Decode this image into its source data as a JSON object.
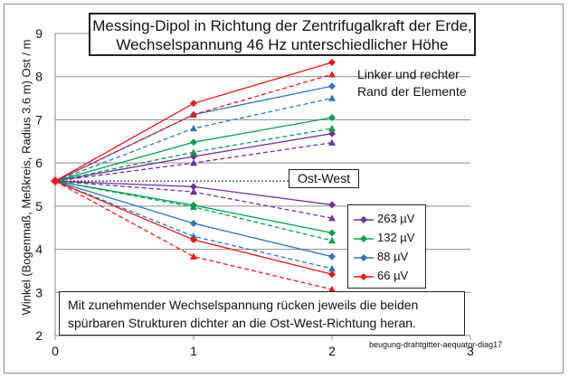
{
  "title_line1": "Messing-Dipol in Richtung der Zentrifugalkraft der Erde,",
  "title_line2": "Wechselspannung 46 Hz unterschiedlicher Höhe",
  "rand_line1": "Linker und rechter",
  "rand_line2": "Rand der Elemente",
  "ostwest_label": "Ost-West",
  "note_line1": "Mit zunehmender  Wechselspannung rücken jeweils die beiden",
  "note_line2": "spürbaren Strukturen  dichter an die Ost-West-Richtung heran.",
  "source_label": "beugung-drahtgitter-aequator-diag17",
  "chart_data": {
    "type": "line",
    "ylabel": "Winkel (Bogenmaß, Meßkreis, Radius 3.6 m)  Ost / m",
    "xlabel": "",
    "xlim": [
      0,
      3
    ],
    "ylim": [
      2,
      9
    ],
    "x_ticks": [
      "0",
      "1",
      "2",
      "3"
    ],
    "y_ticks": [
      "2",
      "3",
      "4",
      "5",
      "6",
      "7",
      "8",
      "9"
    ],
    "grid": "horizontal",
    "legend_position": "lower-right",
    "x": [
      0,
      1,
      2
    ],
    "ostwest_y": 5.58,
    "series": [
      {
        "name": "263 µV",
        "color": "#7030a0",
        "solid_upper": [
          5.58,
          6.15,
          6.68
        ],
        "dashed_upper": [
          5.58,
          6.0,
          6.47
        ],
        "solid_lower": [
          5.58,
          5.45,
          5.03
        ],
        "dashed_lower": [
          5.58,
          5.33,
          4.72
        ]
      },
      {
        "name": "132 µV",
        "color": "#00a050",
        "solid_upper": [
          5.58,
          6.48,
          7.05
        ],
        "dashed_upper": [
          5.58,
          6.25,
          6.8
        ],
        "solid_lower": [
          5.58,
          5.02,
          4.38
        ],
        "dashed_lower": [
          5.58,
          4.98,
          4.2
        ]
      },
      {
        "name": "88 µV",
        "color": "#2e75b6",
        "solid_upper": [
          5.58,
          7.12,
          7.78
        ],
        "dashed_upper": [
          5.58,
          6.8,
          7.5
        ],
        "solid_lower": [
          5.58,
          4.6,
          3.83
        ],
        "dashed_lower": [
          5.58,
          4.3,
          3.55
        ]
      },
      {
        "name": "66 µV",
        "color": "#e8161b",
        "solid_upper": [
          5.58,
          7.38,
          8.33
        ],
        "dashed_upper": [
          5.58,
          7.12,
          8.05
        ],
        "solid_lower": [
          5.58,
          4.22,
          3.42
        ],
        "dashed_lower": [
          5.58,
          3.83,
          3.07
        ]
      }
    ]
  }
}
